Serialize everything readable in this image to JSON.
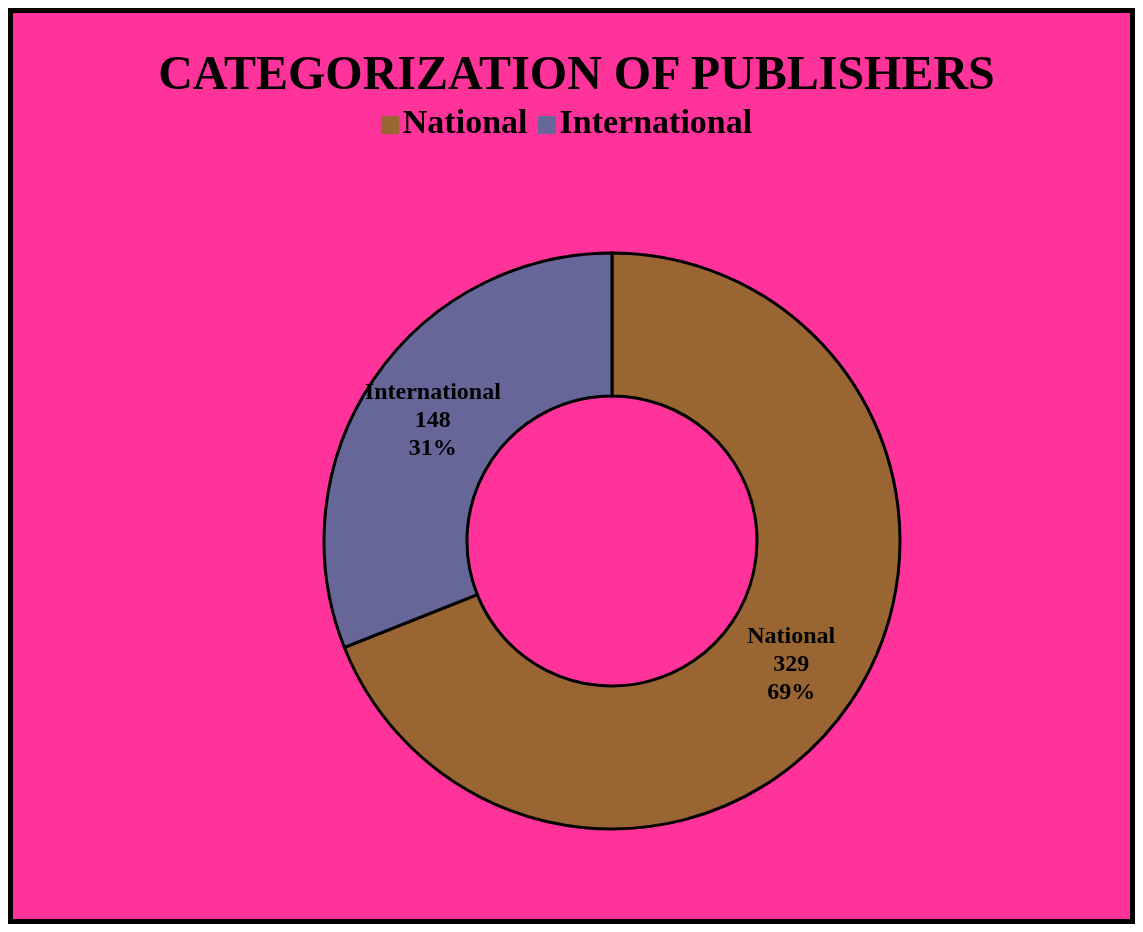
{
  "chart_data": {
    "type": "donut",
    "title": "CATEGORIZATION OF PUBLISHERS",
    "categories": [
      "National",
      "International"
    ],
    "values": [
      329,
      148
    ],
    "colors": [
      "#996633",
      "#666699"
    ],
    "value_labels": [
      "329\n69%",
      "148\n31%"
    ],
    "legend": "top"
  }
}
